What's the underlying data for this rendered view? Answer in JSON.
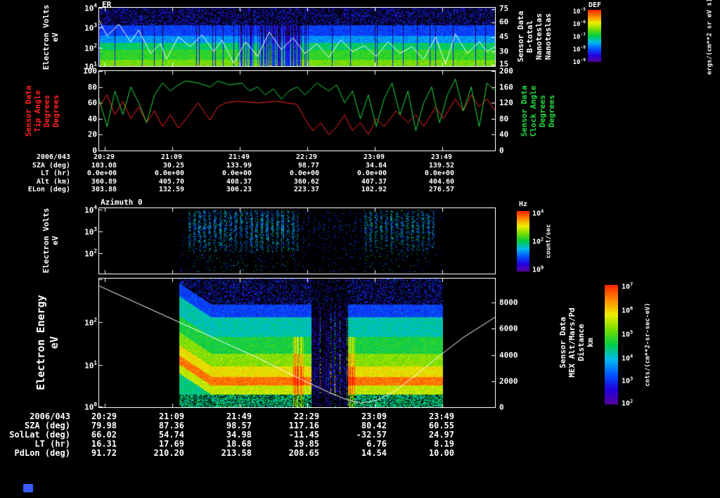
{
  "colors": {
    "bg": "#000000",
    "fg": "#ffffff",
    "red": "#ff2222",
    "green": "#22dd44",
    "white": "#ffffff",
    "rainbow": [
      "#55009b",
      "#2200dd",
      "#0055ff",
      "#00bbee",
      "#00cc44",
      "#77dd00",
      "#eeee00",
      "#ff8800",
      "#ff2200"
    ]
  },
  "misc": {
    "chip_color": "#3b5bff"
  },
  "ephem_top": {
    "date": "2006/043",
    "times": [
      "20:29",
      "21:09",
      "21:49",
      "22:29",
      "23:09",
      "23:49"
    ],
    "rows": [
      {
        "label": "SZA (deg)",
        "values": [
          "103.08",
          "30.25",
          "133.99",
          "98.77",
          "34.84",
          "139.52"
        ]
      },
      {
        "label": "LT (hr)",
        "values": [
          "0.0e+00",
          "0.0e+00",
          "0.0e+00",
          "0.0e+00",
          "0.0e+00",
          "0.0e+00"
        ]
      },
      {
        "label": "Alt (km)",
        "values": [
          "360.89",
          "405.70",
          "408.37",
          "360.62",
          "407.37",
          "404.60"
        ]
      },
      {
        "label": "ELon (deg)",
        "values": [
          "303.88",
          "132.59",
          "306.23",
          "223.37",
          "102.92",
          "276.57"
        ]
      }
    ]
  },
  "ephem_bottom": {
    "date": "2006/043",
    "times": [
      "20:29",
      "21:09",
      "21:49",
      "22:29",
      "23:09",
      "23:49"
    ],
    "rows": [
      {
        "label": "SZA (deg)",
        "values": [
          "79.98",
          "87.36",
          "98.57",
          "117.16",
          "80.42",
          "60.55"
        ]
      },
      {
        "label": "SolLat (deg)",
        "values": [
          "66.02",
          "54.74",
          "34.98",
          "-11.45",
          "-32.57",
          "24.97"
        ]
      },
      {
        "label": "LT (hr)",
        "values": [
          "16.31",
          "17.69",
          "18.68",
          "19.85",
          "6.76",
          "8.19"
        ]
      },
      {
        "label": "PdLon (deg)",
        "values": [
          "91.72",
          "210.20",
          "213.58",
          "208.65",
          "14.54",
          "10.00"
        ]
      }
    ]
  },
  "chart_data": [
    {
      "id": "er-spectrogram",
      "type": "heatmap",
      "title": "ER",
      "ylabel_lines": [
        "Electron Volts",
        "eV"
      ],
      "yticks": [
        "10^4",
        "10^3",
        "10^2",
        "10^1"
      ],
      "y_axis_range_log10_eV": [
        1,
        4
      ],
      "right_axis": {
        "label_lines": [
          "Sensor Data",
          "B-total",
          "Nanoteslas",
          "Nanoteslas"
        ],
        "ticks": [
          "75",
          "60",
          "45",
          "30",
          "15"
        ],
        "range": [
          15,
          75
        ]
      },
      "colorbar": {
        "title": "DEF",
        "ticks": [
          "10^-5",
          "10^-6",
          "10^-7",
          "10^-8",
          "10^-9"
        ],
        "units": "ergs/(cm**2 sr eV s)"
      },
      "heatmap": {
        "seed": 7,
        "gap_x": [
          0.35,
          0.53
        ],
        "bands": [
          [
            0,
            0.3,
            0.1
          ],
          [
            0.3,
            0.48,
            0.22
          ],
          [
            0.48,
            0.6,
            0.33
          ],
          [
            0.6,
            0.72,
            0.48
          ],
          [
            0.72,
            0.88,
            0.55
          ],
          [
            0.88,
            1.01,
            0.62
          ]
        ]
      },
      "series": [
        {
          "name": "B-total (nT)",
          "color": "#ffffff",
          "range": [
            15,
            75
          ],
          "points": [
            [
              0,
              62
            ],
            [
              0.02,
              46
            ],
            [
              0.05,
              58
            ],
            [
              0.08,
              40
            ],
            [
              0.1,
              52
            ],
            [
              0.13,
              28
            ],
            [
              0.155,
              38
            ],
            [
              0.17,
              22
            ],
            [
              0.2,
              45
            ],
            [
              0.23,
              35
            ],
            [
              0.26,
              47
            ],
            [
              0.29,
              30
            ],
            [
              0.31,
              42
            ],
            [
              0.34,
              18
            ],
            [
              0.37,
              40
            ],
            [
              0.4,
              25
            ],
            [
              0.43,
              50
            ],
            [
              0.46,
              32
            ],
            [
              0.49,
              44
            ],
            [
              0.52,
              28
            ],
            [
              0.55,
              38
            ],
            [
              0.58,
              24
            ],
            [
              0.61,
              42
            ],
            [
              0.64,
              30
            ],
            [
              0.67,
              36
            ],
            [
              0.7,
              25
            ],
            [
              0.73,
              40
            ],
            [
              0.76,
              28
            ],
            [
              0.79,
              35
            ],
            [
              0.82,
              22
            ],
            [
              0.85,
              45
            ],
            [
              0.875,
              17
            ],
            [
              0.9,
              48
            ],
            [
              0.93,
              28
            ],
            [
              0.96,
              40
            ],
            [
              0.98,
              30
            ],
            [
              1,
              35
            ]
          ]
        }
      ]
    },
    {
      "id": "angles",
      "type": "line",
      "left_axis": {
        "label_lines": [
          "Sensor Data",
          "Tip Angle",
          "Degrees",
          "Degrees"
        ],
        "ticks": [
          "100",
          "80",
          "60",
          "40",
          "20",
          "0"
        ],
        "range": [
          0,
          100
        ],
        "color": "#ff2222"
      },
      "right_axis": {
        "label_lines": [
          "Sensor Data",
          "Clock Angle",
          "Degrees",
          "Degrees"
        ],
        "ticks": [
          "200",
          "160",
          "120",
          "80",
          "40",
          "0"
        ],
        "range": [
          0,
          200
        ],
        "color": "#22dd44"
      },
      "series": [
        {
          "name": "Tip Angle",
          "axis": "left",
          "color": "#ff2222",
          "range": [
            0,
            100
          ],
          "points": [
            [
              0,
              55
            ],
            [
              0.02,
              70
            ],
            [
              0.04,
              45
            ],
            [
              0.06,
              62
            ],
            [
              0.08,
              40
            ],
            [
              0.1,
              55
            ],
            [
              0.12,
              35
            ],
            [
              0.14,
              50
            ],
            [
              0.16,
              30
            ],
            [
              0.18,
              45
            ],
            [
              0.2,
              28
            ],
            [
              0.22,
              40
            ],
            [
              0.25,
              60
            ],
            [
              0.28,
              38
            ],
            [
              0.3,
              55
            ],
            [
              0.32,
              60
            ],
            [
              0.35,
              62
            ],
            [
              0.4,
              60
            ],
            [
              0.45,
              62
            ],
            [
              0.5,
              58
            ],
            [
              0.52,
              40
            ],
            [
              0.54,
              25
            ],
            [
              0.56,
              35
            ],
            [
              0.58,
              20
            ],
            [
              0.6,
              30
            ],
            [
              0.62,
              45
            ],
            [
              0.64,
              25
            ],
            [
              0.66,
              35
            ],
            [
              0.68,
              20
            ],
            [
              0.7,
              40
            ],
            [
              0.72,
              30
            ],
            [
              0.75,
              50
            ],
            [
              0.78,
              35
            ],
            [
              0.8,
              45
            ],
            [
              0.82,
              30
            ],
            [
              0.85,
              55
            ],
            [
              0.87,
              40
            ],
            [
              0.9,
              65
            ],
            [
              0.92,
              50
            ],
            [
              0.94,
              70
            ],
            [
              0.96,
              55
            ],
            [
              0.98,
              65
            ],
            [
              1,
              50
            ]
          ]
        },
        {
          "name": "Clock Angle",
          "axis": "right",
          "color": "#22dd44",
          "range": [
            0,
            200
          ],
          "points": [
            [
              0,
              130
            ],
            [
              0.02,
              60
            ],
            [
              0.04,
              150
            ],
            [
              0.06,
              90
            ],
            [
              0.08,
              160
            ],
            [
              0.1,
              120
            ],
            [
              0.12,
              70
            ],
            [
              0.14,
              140
            ],
            [
              0.16,
              170
            ],
            [
              0.18,
              150
            ],
            [
              0.2,
              165
            ],
            [
              0.22,
              175
            ],
            [
              0.25,
              170
            ],
            [
              0.28,
              160
            ],
            [
              0.3,
              175
            ],
            [
              0.33,
              165
            ],
            [
              0.36,
              170
            ],
            [
              0.38,
              150
            ],
            [
              0.4,
              160
            ],
            [
              0.42,
              140
            ],
            [
              0.44,
              155
            ],
            [
              0.46,
              130
            ],
            [
              0.48,
              150
            ],
            [
              0.5,
              160
            ],
            [
              0.52,
              140
            ],
            [
              0.55,
              170
            ],
            [
              0.58,
              150
            ],
            [
              0.6,
              165
            ],
            [
              0.62,
              120
            ],
            [
              0.64,
              150
            ],
            [
              0.66,
              80
            ],
            [
              0.68,
              140
            ],
            [
              0.7,
              60
            ],
            [
              0.72,
              130
            ],
            [
              0.74,
              170
            ],
            [
              0.76,
              90
            ],
            [
              0.78,
              150
            ],
            [
              0.8,
              50
            ],
            [
              0.82,
              120
            ],
            [
              0.84,
              160
            ],
            [
              0.86,
              70
            ],
            [
              0.88,
              140
            ],
            [
              0.9,
              180
            ],
            [
              0.92,
              100
            ],
            [
              0.94,
              160
            ],
            [
              0.96,
              60
            ],
            [
              0.98,
              170
            ],
            [
              1,
              150
            ]
          ]
        }
      ]
    },
    {
      "id": "azimuth-spectrogram",
      "type": "heatmap",
      "title": "Azimuth 0",
      "ylabel_lines": [
        "Electron Volts",
        "eV"
      ],
      "yticks": [
        "10^4",
        "10^3",
        "10^2"
      ],
      "colorbar": {
        "title": "Hz",
        "ticks": [
          "10^4",
          "10^2",
          "10^0"
        ],
        "units": "count/sec"
      },
      "heatmap": {
        "seed": 11,
        "data_x": [
          0.204,
          0.867
        ],
        "envelope": [
          [
            0,
            0.03,
            0.05
          ],
          [
            0.03,
            0.45,
            0.85
          ],
          [
            0.45,
            0.7,
            0.15
          ],
          [
            0.7,
            0.97,
            0.7
          ],
          [
            0.97,
            1.01,
            0.05
          ]
        ]
      }
    },
    {
      "id": "electron-energy-spectrogram",
      "type": "heatmap",
      "ylabel_lines": [
        "Electron Energy",
        "eV"
      ],
      "yticks": [
        "10^2",
        "10^1",
        "10^0"
      ],
      "right_axis": {
        "label_lines": [
          "Sensor Data",
          "MEX Alt/Mars/Pd",
          "Distance",
          "km"
        ],
        "ticks": [
          "8000",
          "6000",
          "4000",
          "2000",
          "0"
        ],
        "range": [
          0,
          9867
        ]
      },
      "colorbar": {
        "ticks": [
          "10^7",
          "10^6",
          "10^5",
          "10^4",
          "10^3",
          "10^2"
        ],
        "units": "cnts/(cm**2-sr-sec-eV)"
      },
      "heatmap": {
        "seed": 23,
        "data_x": [
          0.204,
          0.867
        ],
        "gap_x": [
          0.5,
          0.64
        ],
        "red_streaks": [
          [
            0.43,
            0.47
          ],
          [
            0.64,
            0.67
          ]
        ],
        "hump_x": 0.12,
        "bands": [
          [
            0,
            0.2,
            0.07
          ],
          [
            0.2,
            0.3,
            0.22
          ],
          [
            0.3,
            0.45,
            0.42
          ],
          [
            0.45,
            0.58,
            0.52
          ],
          [
            0.58,
            0.68,
            0.64
          ],
          [
            0.68,
            0.76,
            0.76
          ],
          [
            0.76,
            0.83,
            0.9
          ],
          [
            0.83,
            0.9,
            0.7
          ],
          [
            0.9,
            1.01,
            0.46
          ]
        ]
      },
      "series": [
        {
          "name": "MEX Altitude (km)",
          "axis": "right",
          "color": "#ffffff",
          "range": [
            0,
            9867
          ],
          "points": [
            [
              0,
              9300
            ],
            [
              0.08,
              8200
            ],
            [
              0.16,
              7100
            ],
            [
              0.24,
              6000
            ],
            [
              0.32,
              4900
            ],
            [
              0.4,
              3800
            ],
            [
              0.46,
              2900
            ],
            [
              0.52,
              2000
            ],
            [
              0.58,
              1150
            ],
            [
              0.62,
              650
            ],
            [
              0.66,
              320
            ],
            [
              0.7,
              520
            ],
            [
              0.74,
              1100
            ],
            [
              0.8,
              2450
            ],
            [
              0.86,
              3950
            ],
            [
              0.92,
              5350
            ],
            [
              1,
              6900
            ]
          ]
        }
      ]
    }
  ]
}
